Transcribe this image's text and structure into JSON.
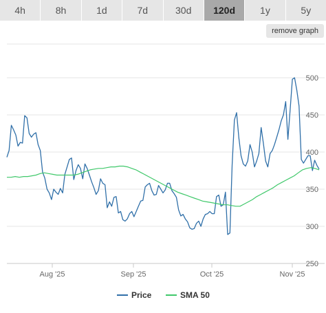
{
  "tabs": [
    {
      "label": "4h",
      "active": false
    },
    {
      "label": "8h",
      "active": false
    },
    {
      "label": "1d",
      "active": false
    },
    {
      "label": "7d",
      "active": false
    },
    {
      "label": "30d",
      "active": false
    },
    {
      "label": "120d",
      "active": true
    },
    {
      "label": "1y",
      "active": false
    },
    {
      "label": "5y",
      "active": false
    }
  ],
  "remove_graph_label": "remove graph",
  "colors": {
    "price": "#2f6fa8",
    "sma": "#3fc86a"
  },
  "chart_data": {
    "type": "line",
    "ylim": [
      250,
      500
    ],
    "yticks": [
      250,
      300,
      350,
      400,
      450,
      500
    ],
    "xticks": [
      "Aug '25",
      "Sep '25",
      "Oct '25",
      "Nov '25"
    ],
    "series": [
      {
        "name": "Price",
        "values": [
          393,
          402,
          436,
          430,
          423,
          408,
          413,
          412,
          449,
          446,
          425,
          420,
          424,
          426,
          410,
          402,
          373,
          365,
          350,
          345,
          336,
          350,
          346,
          343,
          351,
          345,
          370,
          380,
          390,
          392,
          363,
          375,
          383,
          378,
          364,
          384,
          378,
          369,
          360,
          352,
          343,
          348,
          364,
          358,
          356,
          325,
          333,
          327,
          339,
          340,
          318,
          320,
          309,
          307,
          310,
          317,
          320,
          313,
          320,
          327,
          334,
          335,
          353,
          356,
          358,
          348,
          342,
          343,
          355,
          350,
          345,
          349,
          358,
          358,
          348,
          344,
          339,
          322,
          314,
          316,
          310,
          306,
          298,
          296,
          297,
          304,
          307,
          300,
          310,
          316,
          317,
          320,
          317,
          317,
          340,
          342,
          327,
          329,
          346,
          289,
          291,
          382,
          443,
          453,
          419,
          395,
          384,
          381,
          388,
          410,
          400,
          380,
          388,
          398,
          433,
          412,
          388,
          380,
          398,
          402,
          410,
          420,
          430,
          442,
          450,
          468,
          417,
          456,
          498,
          500,
          483,
          462,
          390,
          385,
          390,
          395,
          395,
          375,
          389,
          382,
          377
        ]
      },
      {
        "name": "SMA 50",
        "values": [
          366,
          366,
          367,
          366,
          367,
          367,
          368,
          369,
          371,
          372,
          371,
          370,
          369,
          369,
          369,
          369,
          369,
          370,
          372,
          374,
          376,
          377,
          378,
          378,
          379,
          380,
          380,
          381,
          381,
          380,
          378,
          376,
          373,
          370,
          367,
          364,
          361,
          358,
          355,
          352,
          349,
          346,
          344,
          342,
          340,
          338,
          336,
          334,
          333,
          332,
          331,
          330,
          329,
          329,
          328,
          327,
          327,
          330,
          333,
          336,
          340,
          343,
          346,
          349,
          352,
          356,
          359,
          362,
          365,
          368,
          372,
          376,
          378,
          379,
          378,
          376
        ]
      }
    ]
  },
  "legend": [
    {
      "label": "Price"
    },
    {
      "label": "SMA 50"
    }
  ]
}
